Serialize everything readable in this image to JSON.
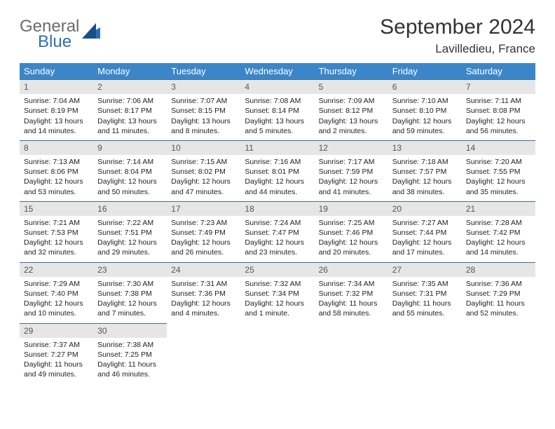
{
  "logo": {
    "word1": "General",
    "word2": "Blue"
  },
  "title": "September 2024",
  "subtitle": "Lavilledieu, France",
  "colors": {
    "header_bg": "#3b86c8",
    "header_text": "#ffffff",
    "daynum_bg": "#e6e6e6",
    "daynum_border": "#3b6fa0",
    "logo_gray": "#6b6b6b",
    "logo_blue": "#2d6fb5"
  },
  "weekdays": [
    "Sunday",
    "Monday",
    "Tuesday",
    "Wednesday",
    "Thursday",
    "Friday",
    "Saturday"
  ],
  "weeks": [
    [
      {
        "n": "1",
        "sr": "Sunrise: 7:04 AM",
        "ss": "Sunset: 8:19 PM",
        "d1": "Daylight: 13 hours",
        "d2": "and 14 minutes."
      },
      {
        "n": "2",
        "sr": "Sunrise: 7:06 AM",
        "ss": "Sunset: 8:17 PM",
        "d1": "Daylight: 13 hours",
        "d2": "and 11 minutes."
      },
      {
        "n": "3",
        "sr": "Sunrise: 7:07 AM",
        "ss": "Sunset: 8:15 PM",
        "d1": "Daylight: 13 hours",
        "d2": "and 8 minutes."
      },
      {
        "n": "4",
        "sr": "Sunrise: 7:08 AM",
        "ss": "Sunset: 8:14 PM",
        "d1": "Daylight: 13 hours",
        "d2": "and 5 minutes."
      },
      {
        "n": "5",
        "sr": "Sunrise: 7:09 AM",
        "ss": "Sunset: 8:12 PM",
        "d1": "Daylight: 13 hours",
        "d2": "and 2 minutes."
      },
      {
        "n": "6",
        "sr": "Sunrise: 7:10 AM",
        "ss": "Sunset: 8:10 PM",
        "d1": "Daylight: 12 hours",
        "d2": "and 59 minutes."
      },
      {
        "n": "7",
        "sr": "Sunrise: 7:11 AM",
        "ss": "Sunset: 8:08 PM",
        "d1": "Daylight: 12 hours",
        "d2": "and 56 minutes."
      }
    ],
    [
      {
        "n": "8",
        "sr": "Sunrise: 7:13 AM",
        "ss": "Sunset: 8:06 PM",
        "d1": "Daylight: 12 hours",
        "d2": "and 53 minutes."
      },
      {
        "n": "9",
        "sr": "Sunrise: 7:14 AM",
        "ss": "Sunset: 8:04 PM",
        "d1": "Daylight: 12 hours",
        "d2": "and 50 minutes."
      },
      {
        "n": "10",
        "sr": "Sunrise: 7:15 AM",
        "ss": "Sunset: 8:02 PM",
        "d1": "Daylight: 12 hours",
        "d2": "and 47 minutes."
      },
      {
        "n": "11",
        "sr": "Sunrise: 7:16 AM",
        "ss": "Sunset: 8:01 PM",
        "d1": "Daylight: 12 hours",
        "d2": "and 44 minutes."
      },
      {
        "n": "12",
        "sr": "Sunrise: 7:17 AM",
        "ss": "Sunset: 7:59 PM",
        "d1": "Daylight: 12 hours",
        "d2": "and 41 minutes."
      },
      {
        "n": "13",
        "sr": "Sunrise: 7:18 AM",
        "ss": "Sunset: 7:57 PM",
        "d1": "Daylight: 12 hours",
        "d2": "and 38 minutes."
      },
      {
        "n": "14",
        "sr": "Sunrise: 7:20 AM",
        "ss": "Sunset: 7:55 PM",
        "d1": "Daylight: 12 hours",
        "d2": "and 35 minutes."
      }
    ],
    [
      {
        "n": "15",
        "sr": "Sunrise: 7:21 AM",
        "ss": "Sunset: 7:53 PM",
        "d1": "Daylight: 12 hours",
        "d2": "and 32 minutes."
      },
      {
        "n": "16",
        "sr": "Sunrise: 7:22 AM",
        "ss": "Sunset: 7:51 PM",
        "d1": "Daylight: 12 hours",
        "d2": "and 29 minutes."
      },
      {
        "n": "17",
        "sr": "Sunrise: 7:23 AM",
        "ss": "Sunset: 7:49 PM",
        "d1": "Daylight: 12 hours",
        "d2": "and 26 minutes."
      },
      {
        "n": "18",
        "sr": "Sunrise: 7:24 AM",
        "ss": "Sunset: 7:47 PM",
        "d1": "Daylight: 12 hours",
        "d2": "and 23 minutes."
      },
      {
        "n": "19",
        "sr": "Sunrise: 7:25 AM",
        "ss": "Sunset: 7:46 PM",
        "d1": "Daylight: 12 hours",
        "d2": "and 20 minutes."
      },
      {
        "n": "20",
        "sr": "Sunrise: 7:27 AM",
        "ss": "Sunset: 7:44 PM",
        "d1": "Daylight: 12 hours",
        "d2": "and 17 minutes."
      },
      {
        "n": "21",
        "sr": "Sunrise: 7:28 AM",
        "ss": "Sunset: 7:42 PM",
        "d1": "Daylight: 12 hours",
        "d2": "and 14 minutes."
      }
    ],
    [
      {
        "n": "22",
        "sr": "Sunrise: 7:29 AM",
        "ss": "Sunset: 7:40 PM",
        "d1": "Daylight: 12 hours",
        "d2": "and 10 minutes."
      },
      {
        "n": "23",
        "sr": "Sunrise: 7:30 AM",
        "ss": "Sunset: 7:38 PM",
        "d1": "Daylight: 12 hours",
        "d2": "and 7 minutes."
      },
      {
        "n": "24",
        "sr": "Sunrise: 7:31 AM",
        "ss": "Sunset: 7:36 PM",
        "d1": "Daylight: 12 hours",
        "d2": "and 4 minutes."
      },
      {
        "n": "25",
        "sr": "Sunrise: 7:32 AM",
        "ss": "Sunset: 7:34 PM",
        "d1": "Daylight: 12 hours",
        "d2": "and 1 minute."
      },
      {
        "n": "26",
        "sr": "Sunrise: 7:34 AM",
        "ss": "Sunset: 7:32 PM",
        "d1": "Daylight: 11 hours",
        "d2": "and 58 minutes."
      },
      {
        "n": "27",
        "sr": "Sunrise: 7:35 AM",
        "ss": "Sunset: 7:31 PM",
        "d1": "Daylight: 11 hours",
        "d2": "and 55 minutes."
      },
      {
        "n": "28",
        "sr": "Sunrise: 7:36 AM",
        "ss": "Sunset: 7:29 PM",
        "d1": "Daylight: 11 hours",
        "d2": "and 52 minutes."
      }
    ],
    [
      {
        "n": "29",
        "sr": "Sunrise: 7:37 AM",
        "ss": "Sunset: 7:27 PM",
        "d1": "Daylight: 11 hours",
        "d2": "and 49 minutes."
      },
      {
        "n": "30",
        "sr": "Sunrise: 7:38 AM",
        "ss": "Sunset: 7:25 PM",
        "d1": "Daylight: 11 hours",
        "d2": "and 46 minutes."
      },
      {
        "empty": true
      },
      {
        "empty": true
      },
      {
        "empty": true
      },
      {
        "empty": true
      },
      {
        "empty": true
      }
    ]
  ]
}
